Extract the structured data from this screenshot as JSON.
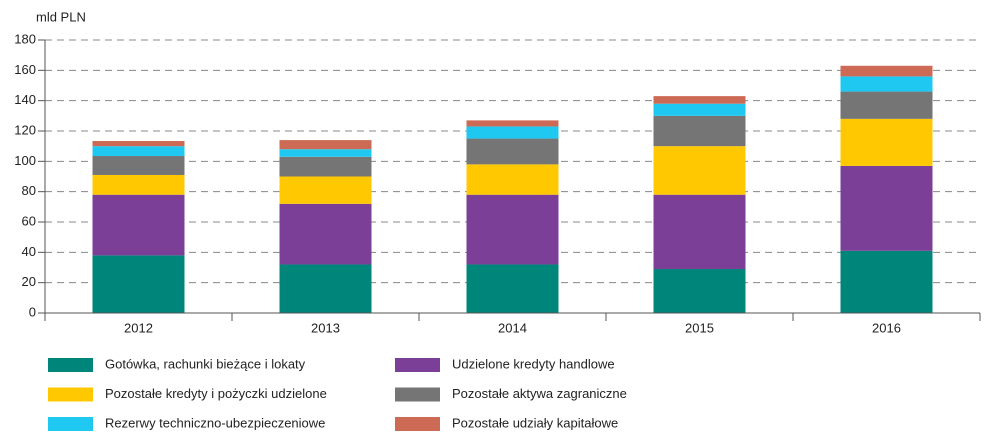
{
  "chart_data": {
    "type": "stacked_bar",
    "y_label": "mld PLN",
    "categories": [
      "2012",
      "2013",
      "2014",
      "2015",
      "2016"
    ],
    "series": [
      {
        "name": "Gotówka, rachunki bieżące i lokaty",
        "color": "#00857a",
        "values": [
          38,
          32,
          32,
          29,
          41
        ]
      },
      {
        "name": "Udzielone kredyty handlowe",
        "color": "#7b3f98",
        "values": [
          40,
          40,
          46,
          49,
          56
        ]
      },
      {
        "name": "Pozostałe kredyty i pożyczki udzielone",
        "color": "#ffc800",
        "values": [
          13,
          18,
          20,
          32,
          31
        ]
      },
      {
        "name": "Pozostałe aktywa zagraniczne",
        "color": "#757575",
        "values": [
          12.5,
          13,
          17,
          20,
          18
        ]
      },
      {
        "name": "Rezerwy techniczno-ubezpieczeniowe",
        "color": "#1ec8f0",
        "values": [
          6.5,
          5,
          8,
          8,
          10
        ]
      },
      {
        "name": "Pozostałe udziały kapitałowe",
        "color": "#cd6a55",
        "values": [
          3.4,
          6,
          4,
          5,
          7
        ]
      }
    ],
    "ylim": [
      0,
      180
    ],
    "yticks": [
      0,
      20,
      40,
      60,
      80,
      100,
      120,
      140,
      160,
      180
    ],
    "grid": true
  }
}
